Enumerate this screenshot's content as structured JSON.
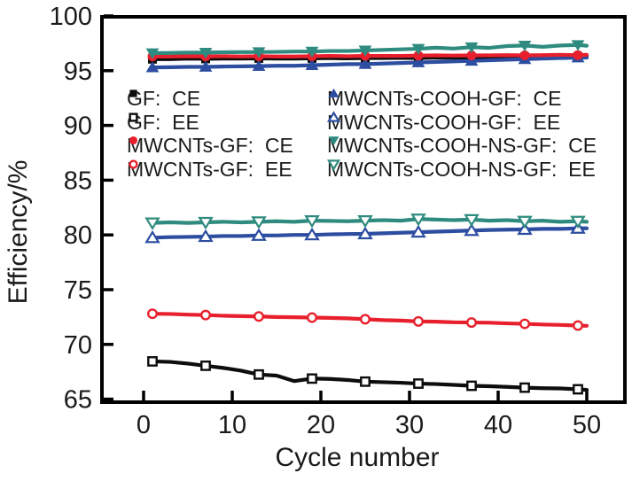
{
  "figure": {
    "background": "#ffffff"
  },
  "chart_data": {
    "type": "line",
    "title": "",
    "xlabel": "Cycle number",
    "ylabel": "Efficiency/%",
    "xlim": [
      -5,
      54
    ],
    "ylim": [
      64.6,
      100.1
    ],
    "xticks": [
      0,
      10,
      20,
      30,
      40,
      50
    ],
    "yticks": [
      65,
      70,
      75,
      80,
      85,
      90,
      95,
      100
    ],
    "grid": false,
    "legend_position": "inside-top, two columns",
    "frame": "full box, inward ticks",
    "axis_color": "#000000",
    "marker_x": [
      1,
      7,
      13,
      19,
      25,
      31,
      37,
      43,
      49
    ],
    "x": [
      1,
      3,
      5,
      7,
      9,
      11,
      13,
      15,
      17,
      19,
      21,
      23,
      25,
      27,
      29,
      31,
      33,
      35,
      37,
      39,
      41,
      43,
      45,
      47,
      49,
      50
    ],
    "series": [
      {
        "name": "GF:  CE",
        "marker": "square-filled",
        "color": "#0d0d0d",
        "values": [
          96.05,
          96.05,
          96.1,
          96.08,
          96.1,
          96.1,
          96.12,
          96.1,
          96.1,
          96.12,
          96.15,
          96.12,
          96.15,
          96.15,
          96.18,
          96.15,
          96.2,
          96.18,
          96.2,
          96.22,
          96.25,
          96.25,
          96.25,
          96.28,
          96.3,
          96.3
        ]
      },
      {
        "name": "GF:  EE",
        "marker": "square-open",
        "color": "#0d0d0d",
        "values": [
          68.45,
          68.4,
          68.25,
          68.05,
          67.85,
          67.6,
          67.25,
          67.15,
          66.65,
          66.88,
          66.85,
          66.75,
          66.6,
          66.55,
          66.5,
          66.42,
          66.38,
          66.3,
          66.22,
          66.18,
          66.12,
          66.05,
          66.0,
          65.98,
          65.9,
          65.85
        ]
      },
      {
        "name": "MWCNTs-GF:  CE",
        "marker": "circle-filled",
        "color": "#e8202d",
        "values": [
          96.3,
          96.3,
          96.32,
          96.3,
          96.32,
          96.3,
          96.32,
          96.3,
          96.3,
          96.32,
          96.35,
          96.32,
          96.35,
          96.35,
          96.35,
          96.38,
          96.4,
          96.38,
          96.4,
          96.4,
          96.42,
          96.4,
          96.42,
          96.45,
          96.42,
          96.45
        ]
      },
      {
        "name": "MWCNTs-GF:  EE",
        "marker": "circle-open",
        "color": "#e8202d",
        "values": [
          72.8,
          72.78,
          72.72,
          72.68,
          72.62,
          72.58,
          72.55,
          72.5,
          72.48,
          72.45,
          72.42,
          72.38,
          72.3,
          72.22,
          72.18,
          72.1,
          72.08,
          72.02,
          72.0,
          71.98,
          71.92,
          71.88,
          71.82,
          71.78,
          71.72,
          71.7
        ]
      },
      {
        "name": "MWCNTs-COOH-GF:  CE",
        "marker": "triangle-up-filled",
        "color": "#2c4da0",
        "values": [
          95.3,
          95.32,
          95.35,
          95.35,
          95.38,
          95.4,
          95.42,
          95.45,
          95.45,
          95.5,
          95.55,
          95.6,
          95.6,
          95.65,
          95.7,
          95.75,
          95.8,
          95.85,
          95.9,
          95.95,
          96.0,
          96.05,
          96.1,
          96.15,
          96.2,
          96.2
        ]
      },
      {
        "name": "MWCNTs-COOH-GF:  EE",
        "marker": "triangle-up-open",
        "color": "#2c4da0",
        "values": [
          79.75,
          79.8,
          79.82,
          79.85,
          79.9,
          79.9,
          79.95,
          79.95,
          80.0,
          80.0,
          80.05,
          80.08,
          80.1,
          80.15,
          80.2,
          80.25,
          80.3,
          80.35,
          80.4,
          80.45,
          80.48,
          80.5,
          80.55,
          80.55,
          80.6,
          80.6
        ]
      },
      {
        "name": "MWCNTs-COOH-NS-GF:  CE",
        "marker": "triangle-down-filled",
        "color": "#2f8b7f",
        "values": [
          96.6,
          96.62,
          96.65,
          96.65,
          96.68,
          96.7,
          96.7,
          96.72,
          96.75,
          96.75,
          96.8,
          96.8,
          96.85,
          96.9,
          96.95,
          97.0,
          97.1,
          97.02,
          97.15,
          97.08,
          97.25,
          97.3,
          97.18,
          97.3,
          97.35,
          97.28
        ]
      },
      {
        "name": "MWCNTs-COOH-NS-GF:  EE",
        "marker": "triangle-down-open",
        "color": "#2f8b7f",
        "values": [
          81.1,
          81.15,
          81.1,
          81.15,
          81.2,
          81.15,
          81.2,
          81.25,
          81.2,
          81.3,
          81.28,
          81.25,
          81.3,
          81.35,
          81.3,
          81.45,
          81.4,
          81.35,
          81.4,
          81.3,
          81.35,
          81.25,
          81.3,
          81.2,
          81.25,
          81.2
        ]
      }
    ],
    "legend_columns": [
      [
        0,
        1,
        2,
        3
      ],
      [
        4,
        5,
        6,
        7
      ]
    ]
  }
}
